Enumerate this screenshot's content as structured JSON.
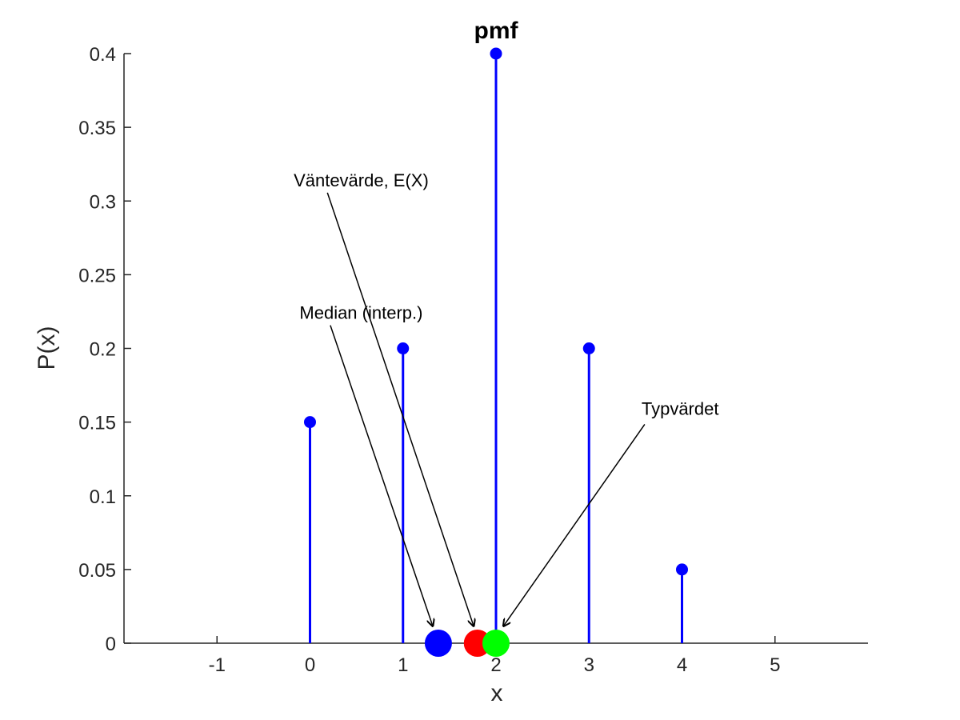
{
  "chart_data": {
    "type": "stem",
    "title": "pmf",
    "xlabel": "x",
    "ylabel": "P(x)",
    "xlim": [
      -2,
      6
    ],
    "ylim": [
      0,
      0.4
    ],
    "grid": false,
    "x_ticks": [
      -1,
      0,
      1,
      2,
      3,
      4,
      5
    ],
    "y_ticks": [
      0,
      0.05,
      0.1,
      0.15,
      0.2,
      0.25,
      0.3,
      0.35,
      0.4
    ],
    "x_tick_labels": [
      "-1",
      "0",
      "1",
      "2",
      "3",
      "4",
      "5"
    ],
    "y_tick_labels": [
      "0",
      "0.05",
      "0.1",
      "0.15",
      "0.2",
      "0.25",
      "0.3",
      "0.35",
      "0.4"
    ],
    "series": [
      {
        "x": [
          0,
          1,
          2,
          3,
          4
        ],
        "values": [
          0.15,
          0.2,
          0.4,
          0.2,
          0.05
        ],
        "color": "#0000ff"
      }
    ],
    "markers": [
      {
        "id": "median",
        "x": 1.38,
        "y": 0,
        "color": "#0000ff"
      },
      {
        "id": "mean",
        "x": 1.8,
        "y": 0,
        "color": "#ff0000"
      },
      {
        "id": "mode",
        "x": 2.0,
        "y": 0,
        "color": "#00ff00"
      }
    ],
    "annotations": [
      {
        "id": "median",
        "text": "Median (interp.)",
        "text_x": 0.55,
        "text_y": 0.22,
        "target_x": 1.32,
        "target_y": 0.004
      },
      {
        "id": "mean",
        "text": "Väntevärde, E(X)",
        "text_x": 0.55,
        "text_y": 0.31,
        "target_x": 1.76,
        "target_y": 0.004
      },
      {
        "id": "mode",
        "text": "Typvärdet",
        "text_x": 3.98,
        "text_y": 0.155,
        "target_x": 2.08,
        "target_y": 0.004
      }
    ]
  }
}
